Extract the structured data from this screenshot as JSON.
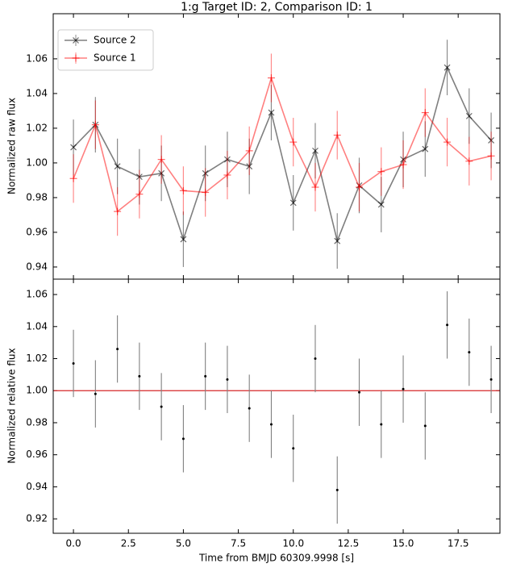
{
  "chart_data": [
    {
      "type": "line",
      "title": "1:g Target ID: 2, Comparison ID: 1",
      "y_label": "Normalized raw flux",
      "x": [
        0,
        1,
        2,
        3,
        4,
        5,
        6,
        7,
        8,
        9,
        10,
        11,
        12,
        13,
        14,
        15,
        16,
        17,
        18,
        19
      ],
      "series": [
        {
          "name": "Source 2",
          "color": "#000000",
          "marker": "x",
          "values": [
            1.009,
            1.022,
            0.998,
            0.992,
            0.994,
            0.956,
            0.994,
            1.002,
            0.998,
            1.029,
            0.977,
            1.007,
            0.955,
            0.987,
            0.976,
            1.002,
            1.008,
            1.055,
            1.027,
            1.013
          ],
          "errors": [
            0.016,
            0.016,
            0.016,
            0.016,
            0.016,
            0.016,
            0.016,
            0.016,
            0.016,
            0.016,
            0.016,
            0.016,
            0.016,
            0.016,
            0.016,
            0.016,
            0.016,
            0.016,
            0.016,
            0.016
          ]
        },
        {
          "name": "Source 1",
          "color": "#ff0000",
          "marker": "+",
          "values": [
            0.991,
            1.022,
            0.972,
            0.982,
            1.002,
            0.984,
            0.983,
            0.993,
            1.007,
            1.049,
            1.012,
            0.986,
            1.016,
            0.986,
            0.995,
            0.999,
            1.029,
            1.012,
            1.001,
            1.004
          ],
          "errors": [
            0.014,
            0.014,
            0.014,
            0.014,
            0.014,
            0.014,
            0.014,
            0.014,
            0.014,
            0.014,
            0.014,
            0.014,
            0.014,
            0.014,
            0.014,
            0.014,
            0.014,
            0.014,
            0.014,
            0.014
          ]
        }
      ],
      "xlim": [
        -0.92,
        19.4
      ],
      "ylim": [
        0.933,
        1.086
      ],
      "yticks": [
        0.94,
        0.96,
        0.98,
        {
          "value": 1.0,
          "label": "1.00"
        },
        1.02,
        1.04,
        1.06
      ],
      "legend": "upper left"
    },
    {
      "type": "scatter",
      "y_label": "Normalized relative flux",
      "x_label": "Time from BMJD 60309.9998 [s]",
      "x": [
        0,
        1,
        2,
        3,
        4,
        5,
        6,
        7,
        8,
        9,
        10,
        11,
        12,
        13,
        14,
        15,
        16,
        17,
        18,
        19
      ],
      "values": [
        1.017,
        0.998,
        1.026,
        1.009,
        0.99,
        0.97,
        1.009,
        1.007,
        0.989,
        0.979,
        0.964,
        1.02,
        0.938,
        0.999,
        0.979,
        1.001,
        0.978,
        1.041,
        1.024,
        1.007
      ],
      "errors": [
        0.021,
        0.021,
        0.021,
        0.021,
        0.021,
        0.021,
        0.021,
        0.021,
        0.021,
        0.021,
        0.021,
        0.021,
        0.021,
        0.021,
        0.021,
        0.021,
        0.021,
        0.021,
        0.021,
        0.021
      ],
      "color": "#000000",
      "error_color": "#808080",
      "hline": 1.0,
      "hline_color": "#d62728",
      "xlim": [
        -0.92,
        19.4
      ],
      "ylim": [
        0.911,
        1.0696
      ],
      "xticks": [
        {
          "value": 0,
          "label": "0.0"
        },
        2.5,
        {
          "value": 5,
          "label": "5.0"
        },
        7.5,
        {
          "value": 10,
          "label": "10.0"
        },
        12.5,
        {
          "value": 15,
          "label": "15.0"
        },
        17.5
      ],
      "yticks": [
        0.92,
        0.94,
        0.96,
        0.98,
        {
          "value": 1.0,
          "label": "1.00"
        },
        1.02,
        1.04,
        1.06
      ]
    }
  ]
}
